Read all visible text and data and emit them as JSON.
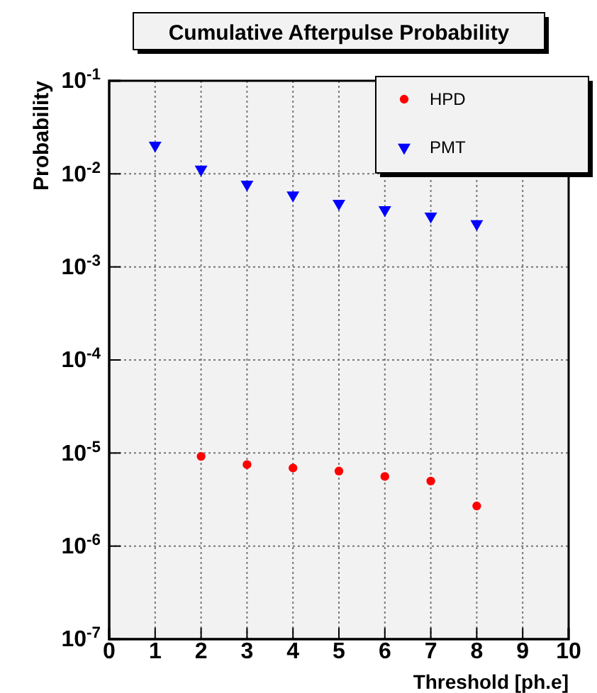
{
  "chart_data": {
    "type": "scatter",
    "title": "Cumulative Afterpulse Probability",
    "xlabel": "Threshold [ph.e]",
    "ylabel": "Probability",
    "log": "y",
    "grid": true,
    "legend": "top right",
    "xlim": [
      0,
      10
    ],
    "xticks": [
      0,
      1,
      2,
      3,
      4,
      5,
      6,
      7,
      8,
      9,
      10
    ],
    "ylim": [
      1e-07,
      0.1
    ],
    "yticks": [
      {
        "value": 1e-07,
        "label": "10$^{-7}$"
      },
      {
        "value": 1e-06,
        "label": "10$^{-6}$"
      },
      {
        "value": 1e-05,
        "label": "10$^{-5}$"
      },
      {
        "value": 0.0001,
        "label": "10$^{-4}$"
      },
      {
        "value": 0.001,
        "label": "10$^{-3}$"
      },
      {
        "value": 0.01,
        "label": "10$^{-2}$"
      },
      {
        "value": 0.1,
        "label": "10$^{-1}$"
      }
    ],
    "series": [
      {
        "name": "HPD",
        "color": "#ff0000",
        "marker": "circle",
        "x": [
          2,
          3,
          4,
          5,
          6,
          7,
          8
        ],
        "values": [
          9.2e-06,
          7.5e-06,
          6.9e-06,
          6.4e-06,
          5.6e-06,
          5e-06,
          2.7e-06
        ]
      },
      {
        "name": "PMT",
        "color": "#0000ff",
        "marker": "triangle",
        "x": [
          1,
          2,
          3,
          4,
          5,
          6,
          7,
          8
        ],
        "values": [
          0.0202,
          0.0112,
          0.0077,
          0.0059,
          0.0048,
          0.0041,
          0.0035,
          0.0029
        ]
      }
    ]
  }
}
